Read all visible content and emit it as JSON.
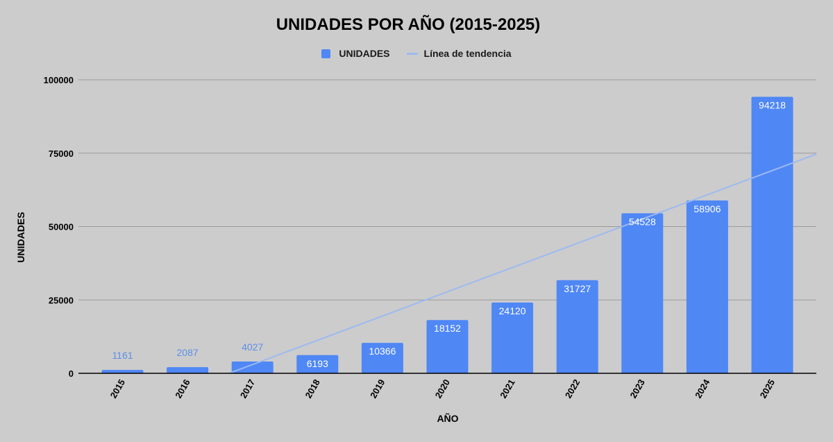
{
  "chart_data": {
    "type": "bar",
    "title": "UNIDADES POR AÑO (2015-2025)",
    "xlabel": "AÑO",
    "ylabel": "UNIDADES",
    "categories": [
      "2015",
      "2016",
      "2017",
      "2018",
      "2019",
      "2020",
      "2021",
      "2022",
      "2023",
      "2024",
      "2025"
    ],
    "series": [
      {
        "name": "UNIDADES",
        "values": [
          1161,
          2087,
          4027,
          6193,
          10366,
          18152,
          24120,
          31727,
          54528,
          58906,
          94218
        ]
      }
    ],
    "trendline": {
      "name": "Línea de tendencia",
      "type": "linear"
    },
    "ylim": [
      0,
      100000
    ],
    "yticks": [
      0,
      25000,
      50000,
      75000,
      100000
    ],
    "grid": true,
    "legend_position": "top",
    "colors": {
      "bar": "#4f87f5",
      "trend": "#9dbaf0",
      "label_outside": "#5b8ee8",
      "label_inside": "#ffffff",
      "gridline": "#9a9a9a",
      "background": "#cccccc"
    }
  }
}
